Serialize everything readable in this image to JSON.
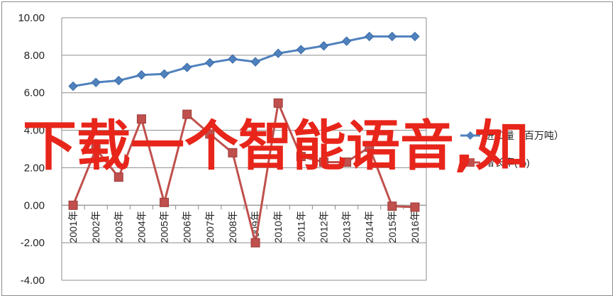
{
  "chart_data": {
    "type": "line",
    "title": "",
    "xlabel": "",
    "ylabel": "",
    "categories": [
      "2001年",
      "2002年",
      "2003年",
      "2004年",
      "2005年",
      "2006年",
      "2007年",
      "2008年",
      "2009年",
      "2010年",
      "2011年",
      "2012年",
      "2013年",
      "2014年",
      "2015年",
      "2016年"
    ],
    "ylim": [
      -4.0,
      10.0
    ],
    "yticks": [
      "-4.00",
      "-2.00",
      "0.00",
      "2.00",
      "4.00",
      "6.00",
      "8.00",
      "10.00"
    ],
    "grid": true,
    "legend_position": "right",
    "series": [
      {
        "name": "进口量（百万吨）",
        "color": "#4f81bd",
        "marker": "diamond",
        "values": [
          6.35,
          6.55,
          6.65,
          6.95,
          7.0,
          7.35,
          7.6,
          7.8,
          7.65,
          8.1,
          8.3,
          8.5,
          8.75,
          9.0,
          9.0,
          9.0
        ]
      },
      {
        "name": "增长率(%)",
        "color": "#c0504d",
        "marker": "square",
        "values": [
          0.0,
          3.0,
          1.5,
          4.6,
          0.15,
          4.85,
          3.8,
          2.8,
          -2.0,
          5.45,
          2.6,
          2.3,
          2.3,
          3.1,
          -0.05,
          -0.1
        ]
      }
    ]
  },
  "legend": {
    "series_1_label": "进口量（百万吨）",
    "series_2_label": "增长率(%)"
  },
  "overlay_text": "下载一个智能语音,如"
}
